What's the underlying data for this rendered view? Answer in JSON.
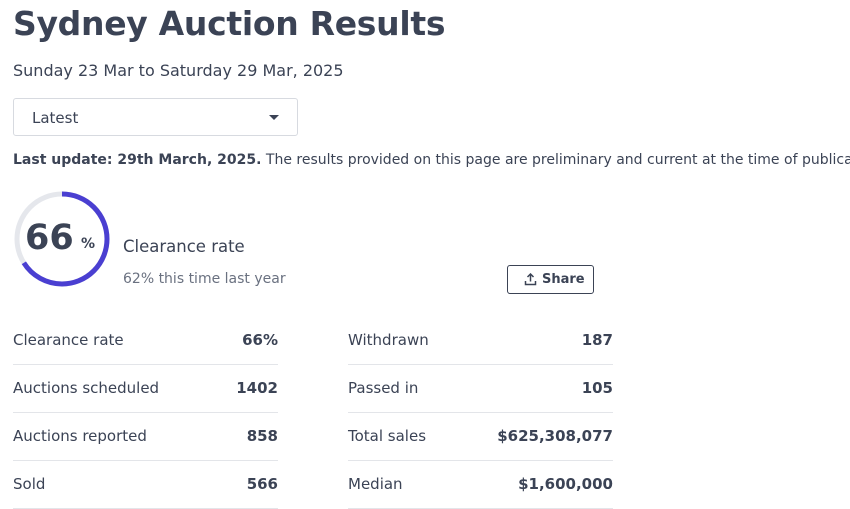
{
  "header": {
    "title": "Sydney Auction Results",
    "date_range": "Sunday 23 Mar to Saturday 29 Mar, 2025"
  },
  "period_select": {
    "selected": "Latest"
  },
  "update": {
    "bold_text": "Last update: 29th March, 2025.",
    "text": " The results provided on this page are preliminary and current at the time of publication."
  },
  "gauge": {
    "value": "66",
    "unit": "%",
    "fraction": 0.66,
    "label": "Clearance rate",
    "comparison": "62% this time last year",
    "color": "#4a3fd1",
    "track_color": "#e5e7ec"
  },
  "share_button": {
    "label": "Share",
    "icon": "share-upload-icon"
  },
  "stats": {
    "left": [
      {
        "label": "Clearance rate",
        "value": "66%"
      },
      {
        "label": "Auctions scheduled",
        "value": "1402"
      },
      {
        "label": "Auctions reported",
        "value": "858"
      },
      {
        "label": "Sold",
        "value": "566"
      }
    ],
    "right": [
      {
        "label": "Withdrawn",
        "value": "187"
      },
      {
        "label": "Passed in",
        "value": "105"
      },
      {
        "label": "Total sales",
        "value": "$625,308,077"
      },
      {
        "label": "Median",
        "value": "$1,600,000"
      }
    ]
  }
}
